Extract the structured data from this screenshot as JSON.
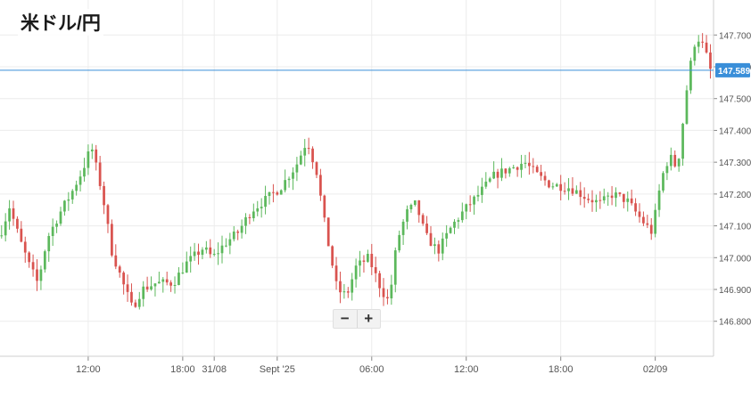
{
  "title": "米ドル/円",
  "zoom": {
    "minus_label": "−",
    "plus_label": "+"
  },
  "colors": {
    "up": "#5cb85c",
    "down": "#d9534f",
    "current_line": "#3a8fd9",
    "grid": "#ececec",
    "axis": "#888888"
  },
  "chart_data": {
    "type": "candlestick",
    "title": "米ドル/円",
    "y_axis": {
      "ticks": [
        146.8,
        146.9,
        147.0,
        147.1,
        147.2,
        147.3,
        147.4,
        147.5,
        147.6,
        147.7
      ],
      "tick_labels": [
        "146.800",
        "146.900",
        "147.000",
        "147.100",
        "147.200",
        "147.300",
        "147.400",
        "147.500",
        "147.600",
        "147.700"
      ],
      "range": [
        146.69,
        147.81
      ]
    },
    "x_axis": {
      "labels": [
        {
          "text": "12:00",
          "t": 12
        },
        {
          "text": "18:00",
          "t": 18
        },
        {
          "text": "31/08",
          "t": 20
        },
        {
          "text": "Sept '25",
          "t": 24
        },
        {
          "text": "06:00",
          "t": 30
        },
        {
          "text": "12:00",
          "t": 36
        },
        {
          "text": "18:00",
          "t": 42
        },
        {
          "text": "02/09",
          "t": 48
        }
      ],
      "range_hours": [
        6.4,
        51.7
      ]
    },
    "current_price": {
      "value": 147.589,
      "label": "147.589"
    },
    "grid": true,
    "candles": []
  }
}
